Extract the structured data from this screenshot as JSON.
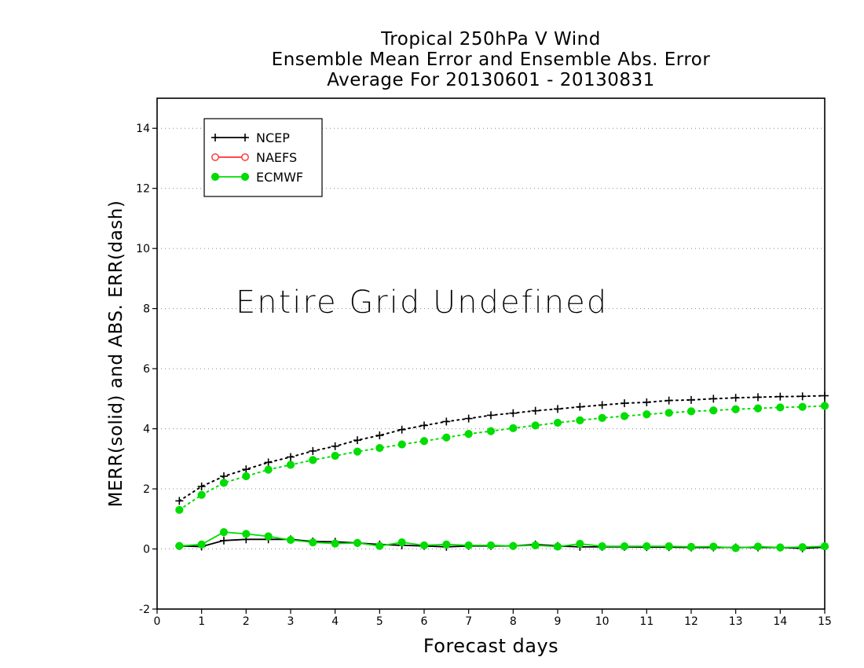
{
  "chart_data": {
    "type": "line",
    "title": [
      "Tropical 250hPa V Wind",
      "Ensemble Mean Error and Ensemble Abs. Error",
      "Average For 20130601 - 20130831"
    ],
    "xlabel": "Forecast days",
    "ylabel": "MERR(solid) and ABS. ERR(dash)",
    "annotation": "Entire Grid Undefined",
    "xlim": [
      0,
      15
    ],
    "ylim": [
      -2,
      15
    ],
    "xticks": [
      0,
      1,
      2,
      3,
      4,
      5,
      6,
      7,
      8,
      9,
      10,
      11,
      12,
      13,
      14,
      15
    ],
    "yticks": [
      -2,
      0,
      2,
      4,
      6,
      8,
      10,
      12,
      14
    ],
    "grid": "horizontal dotted",
    "legend_position": "top-left",
    "legend": [
      {
        "name": "NCEP",
        "color": "#000000",
        "marker": "plus"
      },
      {
        "name": "NAEFS",
        "color": "#ff3030",
        "marker": "open-circle"
      },
      {
        "name": "ECMWF",
        "color": "#00dd00",
        "marker": "filled-circle"
      }
    ],
    "x": [
      0.5,
      1,
      1.5,
      2,
      2.5,
      3,
      3.5,
      4,
      4.5,
      5,
      5.5,
      6,
      6.5,
      7,
      7.5,
      8,
      8.5,
      9,
      9.5,
      10,
      10.5,
      11,
      11.5,
      12,
      12.5,
      13,
      13.5,
      14,
      14.5,
      15
    ],
    "series": [
      {
        "name": "NCEP",
        "style": "solid",
        "color": "#000000",
        "marker": "plus",
        "values": [
          0.1,
          0.08,
          0.28,
          0.32,
          0.32,
          0.32,
          0.25,
          0.24,
          0.2,
          0.15,
          0.12,
          0.1,
          0.07,
          0.1,
          0.1,
          0.1,
          0.15,
          0.1,
          0.07,
          0.07,
          0.07,
          0.06,
          0.06,
          0.05,
          0.05,
          0.05,
          0.05,
          0.05,
          0.02,
          0.06
        ]
      },
      {
        "name": "ECMWF",
        "style": "solid",
        "color": "#00dd00",
        "marker": "filled-circle",
        "values": [
          0.1,
          0.15,
          0.56,
          0.5,
          0.42,
          0.3,
          0.22,
          0.18,
          0.2,
          0.1,
          0.22,
          0.12,
          0.15,
          0.12,
          0.12,
          0.1,
          0.12,
          0.08,
          0.17,
          0.09,
          0.09,
          0.09,
          0.09,
          0.07,
          0.08,
          0.03,
          0.08,
          0.05,
          0.06,
          0.09
        ]
      },
      {
        "name": "NCEP",
        "style": "dotted",
        "color": "#000000",
        "marker": "plus",
        "values": [
          1.6,
          2.08,
          2.42,
          2.65,
          2.88,
          3.06,
          3.26,
          3.42,
          3.62,
          3.78,
          3.97,
          4.11,
          4.24,
          4.34,
          4.45,
          4.52,
          4.6,
          4.66,
          4.73,
          4.79,
          4.85,
          4.88,
          4.94,
          4.96,
          5.0,
          5.03,
          5.05,
          5.07,
          5.08,
          5.1
        ]
      },
      {
        "name": "ECMWF",
        "style": "dotted",
        "color": "#00dd00",
        "marker": "filled-circle",
        "values": [
          1.3,
          1.8,
          2.2,
          2.42,
          2.64,
          2.8,
          2.96,
          3.1,
          3.24,
          3.36,
          3.48,
          3.59,
          3.71,
          3.83,
          3.92,
          4.02,
          4.11,
          4.2,
          4.28,
          4.36,
          4.42,
          4.48,
          4.53,
          4.58,
          4.61,
          4.65,
          4.68,
          4.71,
          4.73,
          4.76
        ]
      }
    ]
  }
}
